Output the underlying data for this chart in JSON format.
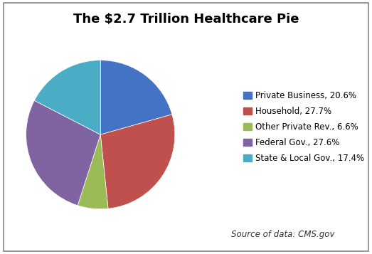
{
  "title": "The $2.7 Trillion Healthcare Pie",
  "labels": [
    "Private Business, 20.6%",
    "Household, 27.7%",
    "Other Private Rev., 6.6%",
    "Federal Gov., 27.6%",
    "State & Local Gov., 17.4%"
  ],
  "values": [
    20.6,
    27.7,
    6.6,
    27.6,
    17.4
  ],
  "colors": [
    "#4472C4",
    "#C0504D",
    "#9BBB59",
    "#8064A2",
    "#4BACC6"
  ],
  "startangle": 90,
  "source_text": "Source of data: CMS.gov",
  "title_fontsize": 13,
  "legend_fontsize": 8.5,
  "source_fontsize": 8.5,
  "background_color": "#FFFFFF",
  "border_color": "#888888"
}
